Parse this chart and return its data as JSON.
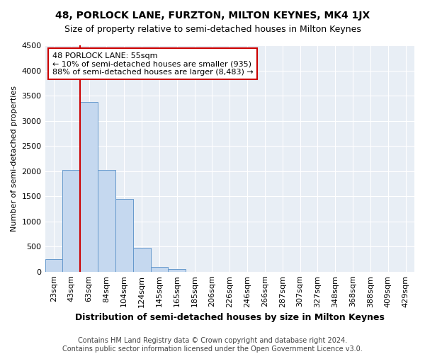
{
  "title": "48, PORLOCK LANE, FURZTON, MILTON KEYNES, MK4 1JX",
  "subtitle": "Size of property relative to semi-detached houses in Milton Keynes",
  "xlabel": "Distribution of semi-detached houses by size in Milton Keynes",
  "ylabel": "Number of semi-detached properties",
  "categories": [
    "23sqm",
    "43sqm",
    "63sqm",
    "84sqm",
    "104sqm",
    "124sqm",
    "145sqm",
    "165sqm",
    "185sqm",
    "206sqm",
    "226sqm",
    "246sqm",
    "266sqm",
    "287sqm",
    "307sqm",
    "327sqm",
    "348sqm",
    "368sqm",
    "388sqm",
    "409sqm",
    "429sqm"
  ],
  "values": [
    250,
    2020,
    3370,
    2020,
    1450,
    470,
    100,
    55,
    0,
    0,
    0,
    0,
    0,
    0,
    0,
    0,
    0,
    0,
    0,
    0,
    0
  ],
  "bar_color": "#c5d8ef",
  "bar_edge_color": "#6699cc",
  "vline_x_index": 1.5,
  "vline_color": "#cc0000",
  "annotation_line1": "48 PORLOCK LANE: 55sqm",
  "annotation_line2": "← 10% of semi-detached houses are smaller (935)",
  "annotation_line3": "88% of semi-detached houses are larger (8,483) →",
  "annotation_box_color": "white",
  "annotation_box_edge_color": "#cc0000",
  "ylim": [
    0,
    4500
  ],
  "yticks": [
    0,
    500,
    1000,
    1500,
    2000,
    2500,
    3000,
    3500,
    4000,
    4500
  ],
  "footer_line1": "Contains HM Land Registry data © Crown copyright and database right 2024.",
  "footer_line2": "Contains public sector information licensed under the Open Government Licence v3.0.",
  "bg_color": "#ffffff",
  "plot_bg_color": "#e8eef5",
  "grid_color": "#ffffff",
  "title_fontsize": 10,
  "subtitle_fontsize": 9,
  "xlabel_fontsize": 9,
  "ylabel_fontsize": 8,
  "tick_fontsize": 8,
  "annot_fontsize": 8,
  "footer_fontsize": 7
}
